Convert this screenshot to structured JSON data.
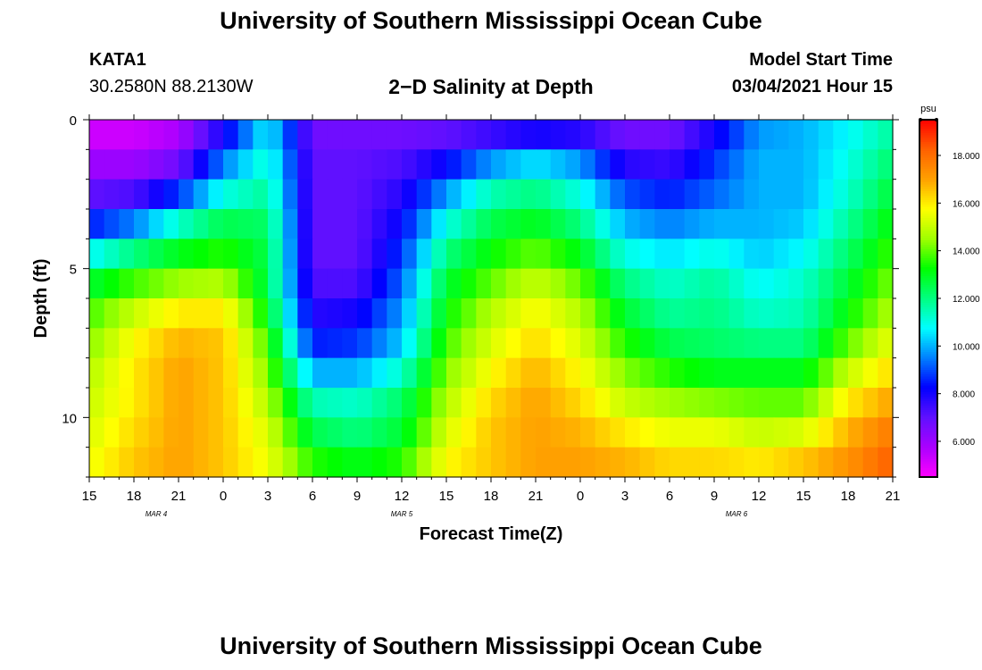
{
  "header": {
    "title": "University of Southern Mississippi Ocean Cube",
    "footer_title": "University of Southern Mississippi Ocean Cube",
    "station": "KATA1",
    "location": "30.2580N 88.2130W",
    "plot_title": "2−D Salinity at Depth",
    "model_start_label": "Model Start Time",
    "model_start_value": "03/04/2021 Hour 15"
  },
  "chart_data": {
    "type": "heatmap",
    "title": "2-D Salinity at Depth",
    "xlabel": "Forecast Time(Z)",
    "ylabel": "Depth (ft)",
    "x_tick_labels": [
      "15",
      "18",
      "21",
      "0",
      "3",
      "6",
      "9",
      "12",
      "15",
      "18",
      "21",
      "0",
      "3",
      "6",
      "9",
      "12",
      "15",
      "18",
      "21"
    ],
    "date_labels": [
      {
        "label": "MAR 4",
        "hour_index": 4.5
      },
      {
        "label": "MAR 5",
        "hour_index": 21
      },
      {
        "label": "MAR 6",
        "hour_index": 43.5
      }
    ],
    "x_range_hours": [
      0,
      54
    ],
    "y_tick_labels": [
      "0",
      "5",
      "10"
    ],
    "y_tick_values": [
      0,
      5,
      10
    ],
    "ylim": [
      0,
      12
    ],
    "depth_levels_ft": [
      0,
      1,
      2,
      3,
      4,
      5,
      6,
      7,
      8,
      9,
      10,
      11,
      12
    ],
    "times_hours": [
      0,
      3,
      6,
      9,
      12,
      15,
      18,
      21,
      24,
      27,
      30,
      33,
      36,
      39,
      42,
      45,
      48,
      51,
      54
    ],
    "salinity_psu": [
      [
        5.0,
        5.0,
        5.5,
        7.0,
        10.5,
        6.5,
        6.5,
        6.5,
        6.5,
        6.5,
        6.5,
        6.5,
        6.5,
        6.5,
        7.5,
        9.5,
        10.0,
        10.5,
        11.5
      ],
      [
        5.5,
        5.5,
        6.0,
        9.0,
        11.0,
        7.0,
        7.0,
        7.0,
        7.5,
        8.5,
        9.5,
        9.0,
        7.0,
        7.0,
        8.5,
        10.0,
        10.0,
        11.0,
        12.0
      ],
      [
        6.5,
        6.5,
        7.5,
        10.0,
        11.5,
        7.0,
        7.0,
        7.5,
        9.0,
        11.0,
        11.5,
        10.5,
        8.5,
        8.0,
        9.0,
        10.0,
        10.0,
        11.0,
        12.5
      ],
      [
        7.5,
        8.0,
        10.0,
        12.0,
        12.0,
        7.0,
        7.0,
        8.0,
        10.5,
        12.0,
        12.5,
        11.5,
        9.5,
        9.0,
        9.5,
        10.0,
        10.0,
        11.5,
        13.0
      ],
      [
        9.5,
        11.0,
        12.5,
        13.0,
        12.5,
        7.0,
        7.0,
        8.5,
        11.5,
        13.0,
        13.5,
        12.5,
        10.5,
        10.0,
        10.5,
        10.0,
        10.5,
        12.0,
        13.5
      ],
      [
        12.0,
        13.0,
        13.5,
        14.0,
        12.5,
        7.0,
        7.0,
        9.0,
        12.5,
        13.5,
        14.5,
        13.5,
        11.5,
        11.0,
        11.5,
        10.5,
        11.0,
        12.5,
        14.0
      ],
      [
        13.5,
        14.5,
        15.5,
        15.5,
        12.5,
        7.5,
        7.5,
        9.5,
        13.0,
        14.5,
        15.5,
        14.5,
        12.5,
        11.5,
        12.0,
        11.0,
        11.5,
        13.0,
        14.5
      ],
      [
        14.0,
        15.5,
        16.5,
        16.5,
        13.5,
        8.0,
        8.5,
        10.0,
        13.5,
        15.0,
        16.0,
        15.0,
        13.0,
        12.0,
        12.0,
        11.5,
        11.5,
        13.5,
        15.0
      ],
      [
        14.5,
        16.0,
        17.0,
        16.5,
        14.0,
        9.0,
        9.0,
        10.5,
        14.0,
        15.5,
        16.5,
        15.5,
        14.0,
        13.0,
        12.5,
        12.5,
        12.5,
        14.5,
        16.0
      ],
      [
        15.0,
        16.0,
        17.0,
        16.5,
        14.5,
        11.0,
        11.0,
        12.0,
        14.5,
        16.0,
        17.0,
        16.0,
        14.5,
        14.0,
        13.5,
        13.5,
        13.5,
        15.5,
        16.5
      ],
      [
        15.0,
        16.0,
        17.0,
        16.5,
        15.0,
        12.0,
        11.5,
        12.5,
        15.0,
        16.5,
        17.0,
        16.5,
        15.5,
        15.0,
        15.0,
        14.5,
        14.5,
        16.5,
        17.5
      ],
      [
        15.5,
        16.5,
        17.0,
        16.5,
        15.5,
        13.0,
        12.5,
        13.0,
        15.5,
        16.5,
        17.0,
        17.0,
        16.5,
        16.0,
        16.0,
        15.5,
        16.0,
        17.0,
        18.0
      ],
      [
        15.5,
        16.5,
        17.0,
        16.5,
        15.5,
        14.0,
        13.5,
        14.0,
        16.0,
        16.5,
        17.0,
        17.0,
        17.0,
        16.5,
        16.5,
        16.5,
        17.0,
        17.5,
        18.5
      ]
    ],
    "colorbar": {
      "unit_label": "psu",
      "min": 4.5,
      "max": 19.5,
      "tick_values": [
        6,
        8,
        10,
        12,
        14,
        16,
        18
      ],
      "tick_labels": [
        "6.000",
        "8.000",
        "10.000",
        "12.000",
        "14.000",
        "16.000",
        "18.000"
      ],
      "colors": [
        "#ff00ff",
        "#aa00ff",
        "#6010ff",
        "#0000ff",
        "#0080ff",
        "#00ffff",
        "#00ff80",
        "#00ff00",
        "#a0ff00",
        "#ffff00",
        "#ffa000",
        "#ff6000",
        "#ff0000"
      ]
    }
  }
}
